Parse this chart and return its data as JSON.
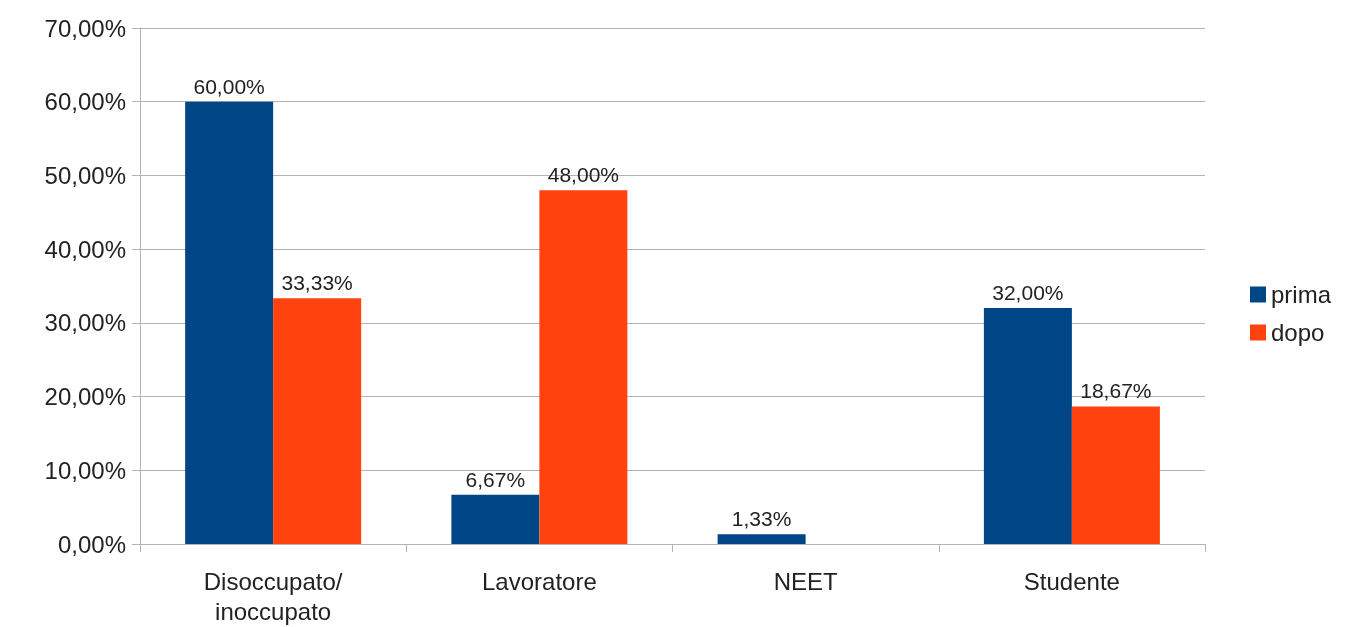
{
  "chart_data": {
    "type": "bar",
    "categories": [
      "Disoccupato/\ninoccupato",
      "Lavoratore",
      "NEET",
      "Studente"
    ],
    "series": [
      {
        "name": "prima",
        "color": "#004586",
        "values": [
          60,
          6.67,
          1.33,
          32
        ],
        "value_labels": [
          "60,00%",
          "6,67%",
          "1,33%",
          "32,00%"
        ]
      },
      {
        "name": "dopo",
        "color": "#ff420e",
        "values": [
          33.33,
          48,
          null,
          18.67
        ],
        "value_labels": [
          "33,33%",
          "48,00%",
          null,
          "18,67%"
        ]
      }
    ],
    "ylim": [
      0,
      70
    ],
    "yticks": [
      {
        "value": 0,
        "label": "0,00%"
      },
      {
        "value": 10,
        "label": "10,00%"
      },
      {
        "value": 20,
        "label": "20,00%"
      },
      {
        "value": 30,
        "label": "30,00%"
      },
      {
        "value": 40,
        "label": "40,00%"
      },
      {
        "value": 50,
        "label": "50,00%"
      },
      {
        "value": 60,
        "label": "60,00%"
      },
      {
        "value": 70,
        "label": "70,00%"
      }
    ],
    "grid": "y",
    "legend": "right"
  }
}
